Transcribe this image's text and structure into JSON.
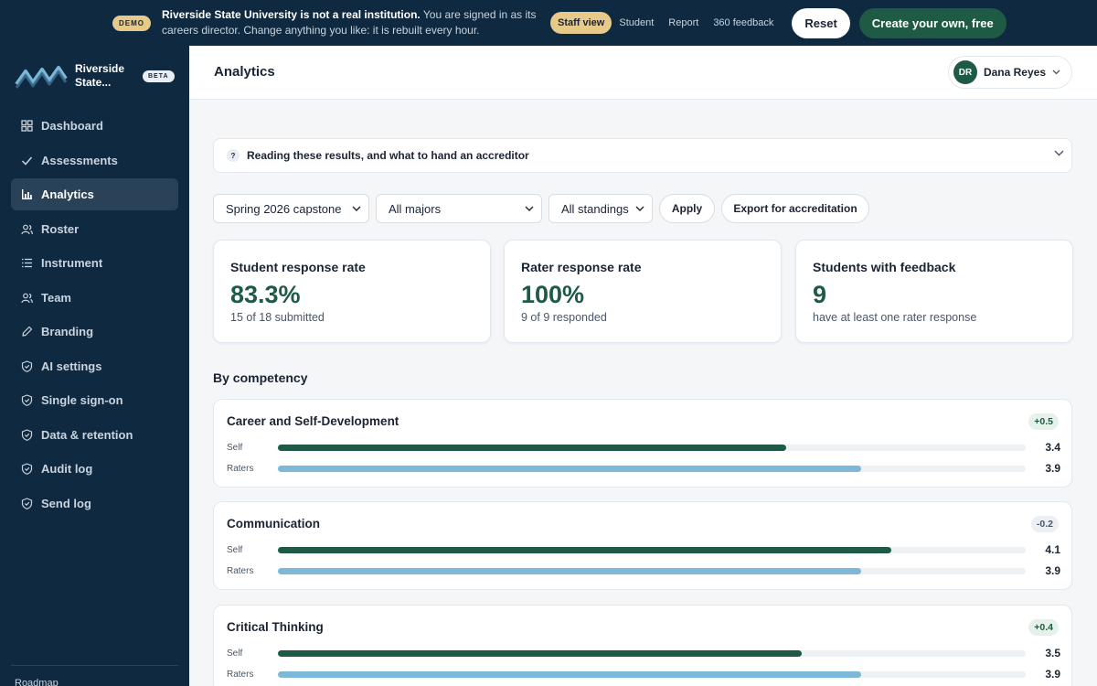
{
  "banner": {
    "demo_label": "DEMO",
    "message_bold": "Riverside State University is not a real institution.",
    "message_rest": " You are signed in as its careers director. Change anything you like: it is rebuilt every hour.",
    "views": [
      "Staff view",
      "Student",
      "Report",
      "360 feedback"
    ],
    "active_view": "Staff view",
    "reset_label": "Reset",
    "create_label": "Create your own, free"
  },
  "sidebar": {
    "brand_name": "Riverside State...",
    "beta_label": "BETA",
    "items": [
      {
        "label": "Dashboard",
        "icon": "grid-icon"
      },
      {
        "label": "Assessments",
        "icon": "check-icon"
      },
      {
        "label": "Analytics",
        "icon": "bar-chart-icon",
        "active": true
      },
      {
        "label": "Roster",
        "icon": "users-icon"
      },
      {
        "label": "Instrument",
        "icon": "list-icon"
      },
      {
        "label": "Team",
        "icon": "team-icon"
      },
      {
        "label": "Branding",
        "icon": "brush-icon"
      },
      {
        "label": "AI settings",
        "icon": "shield-icon"
      },
      {
        "label": "Single sign-on",
        "icon": "shield-icon"
      },
      {
        "label": "Data & retention",
        "icon": "shield-icon"
      },
      {
        "label": "Audit log",
        "icon": "shield-icon"
      },
      {
        "label": "Send log",
        "icon": "shield-icon"
      }
    ],
    "footer_label": "Roadmap"
  },
  "header": {
    "title": "Analytics",
    "user_initials": "DR",
    "user_name": "Dana Reyes"
  },
  "help": {
    "icon_label": "?",
    "text": "Reading these results, and what to hand an accreditor"
  },
  "filters": {
    "term": "Spring 2026 capstone",
    "major": "All majors",
    "standing": "All standings",
    "apply_label": "Apply",
    "export_label": "Export for accreditation"
  },
  "stats": [
    {
      "label": "Student response rate",
      "value": "83.3%",
      "sub": "15 of 18 submitted"
    },
    {
      "label": "Rater response rate",
      "value": "100%",
      "sub": "9 of 9 responded"
    },
    {
      "label": "Students with feedback",
      "value": "9",
      "sub": "have at least one rater response"
    }
  ],
  "competency_section_title": "By competency",
  "scale_max": 5,
  "competencies": [
    {
      "name": "Career and Self-Development",
      "delta": "+0.5",
      "delta_sign": "pos",
      "rows": [
        {
          "label": "Self",
          "value": 3.4,
          "display": "3.4"
        },
        {
          "label": "Raters",
          "value": 3.9,
          "display": "3.9"
        }
      ]
    },
    {
      "name": "Communication",
      "delta": "-0.2",
      "delta_sign": "neg",
      "rows": [
        {
          "label": "Self",
          "value": 4.1,
          "display": "4.1"
        },
        {
          "label": "Raters",
          "value": 3.9,
          "display": "3.9"
        }
      ]
    },
    {
      "name": "Critical Thinking",
      "delta": "+0.4",
      "delta_sign": "pos",
      "rows": [
        {
          "label": "Self",
          "value": 3.5,
          "display": "3.5"
        },
        {
          "label": "Raters",
          "value": 3.9,
          "display": "3.9"
        }
      ]
    }
  ],
  "colors": {
    "navy": "#0f2a40",
    "accent_green": "#1f5a45",
    "rater_blue": "#7db8d8",
    "gold": "#e7c98a"
  }
}
